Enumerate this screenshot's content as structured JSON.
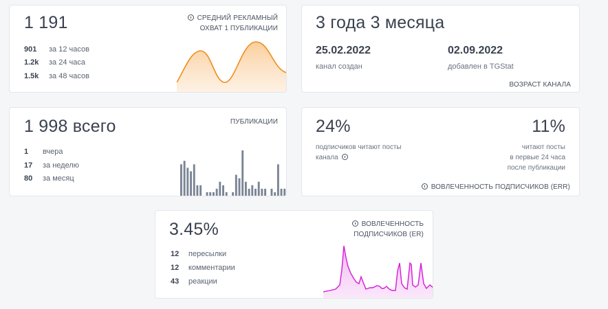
{
  "reach": {
    "value": "1 191",
    "caption_line1": "СРЕДНИЙ РЕКЛАМНЫЙ",
    "caption_line2": "ОХВАТ 1 ПУБЛИКАЦИИ",
    "rows": [
      {
        "num": "901",
        "label": "за 12 часов"
      },
      {
        "num": "1.2k",
        "label": "за 24 часа"
      },
      {
        "num": "1.5k",
        "label": "за 48 часов"
      }
    ],
    "color": "#f08c1a"
  },
  "age": {
    "value": "3 года 3 месяца",
    "created_date": "25.02.2022",
    "created_label": "канал создан",
    "added_date": "02.09.2022",
    "added_label": "добавлен в TGStat",
    "caption": "ВОЗРАСТ КАНАЛА"
  },
  "posts": {
    "value": "1 998 всего",
    "caption": "ПУБЛИКАЦИИ",
    "rows": [
      {
        "num": "1",
        "label": "вчера"
      },
      {
        "num": "17",
        "label": "за неделю"
      },
      {
        "num": "80",
        "label": "за месяц"
      }
    ],
    "bars": [
      9,
      10,
      8,
      7,
      9,
      3,
      3,
      0,
      1,
      1,
      1,
      2,
      4,
      3,
      1,
      0,
      1,
      6,
      5,
      13,
      4,
      2,
      3,
      2,
      4,
      2,
      2,
      0,
      2,
      1,
      9,
      2,
      2
    ],
    "color": "#7a8494"
  },
  "err": {
    "left_value": "24%",
    "left_text_line1": "подписчиков читают посты",
    "left_text_line2": "канала",
    "right_value": "11%",
    "right_text_line1": "читают посты",
    "right_text_line2": "в первые 24 часа",
    "right_text_line3": "после публикации",
    "caption": "ВОВЛЕЧЕННОСТЬ ПОДПИСЧИКОВ (ERR)"
  },
  "er": {
    "value": "3.45%",
    "caption_line1": "ВОВЛЕЧЕННОСТЬ",
    "caption_line2": "ПОДПИСЧИКОВ (ER)",
    "rows": [
      {
        "num": "12",
        "label": "пересылки"
      },
      {
        "num": "12",
        "label": "комментарии"
      },
      {
        "num": "43",
        "label": "реакции"
      }
    ],
    "color": "#d61ad6"
  }
}
